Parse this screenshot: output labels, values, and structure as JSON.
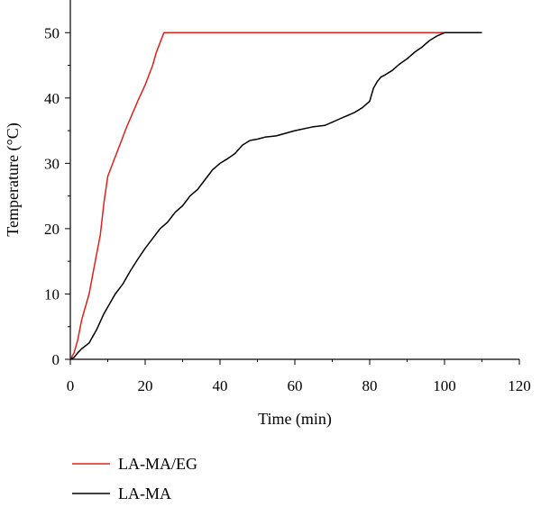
{
  "chart_data": {
    "type": "line",
    "xlabel": "Time (min)",
    "ylabel": "Temperature (°C)",
    "xlim": [
      0,
      120
    ],
    "ylim": [
      0,
      55
    ],
    "xticks": [
      0,
      20,
      40,
      60,
      80,
      100,
      120
    ],
    "yticks": [
      0,
      10,
      20,
      30,
      40,
      50
    ],
    "grid": false,
    "legend_placement": "bottom-left",
    "series": [
      {
        "name": "LA-MA/EG",
        "color": "#e0201b",
        "x": [
          0,
          1,
          2,
          3,
          5,
          7,
          8,
          9,
          10,
          12,
          15,
          18,
          20,
          22,
          23,
          24,
          25,
          50,
          100
        ],
        "y": [
          0,
          1,
          3,
          6,
          10,
          16,
          19,
          24,
          28,
          31,
          35.5,
          39.5,
          42,
          45,
          47,
          48.5,
          50,
          50,
          50
        ]
      },
      {
        "name": "LA-MA",
        "color": "#000000",
        "x": [
          0,
          1,
          2,
          3,
          5,
          7,
          9,
          10,
          12,
          14,
          16,
          18,
          20,
          22,
          24,
          26,
          28,
          30,
          32,
          34,
          36,
          38,
          40,
          42,
          44,
          46,
          48,
          50,
          52,
          55,
          60,
          65,
          68,
          70,
          72,
          74,
          76,
          78,
          80,
          81,
          82,
          83,
          84,
          86,
          88,
          90,
          92,
          94,
          96,
          98,
          100,
          110
        ],
        "y": [
          0,
          0.3,
          1,
          1.6,
          2.5,
          4.5,
          7,
          8,
          10,
          11.5,
          13.5,
          15.3,
          17,
          18.5,
          20,
          21,
          22.5,
          23.5,
          25,
          26,
          27.5,
          29,
          30,
          30.7,
          31.5,
          32.8,
          33.5,
          33.7,
          34,
          34.2,
          35,
          35.6,
          35.8,
          36.3,
          36.8,
          37.3,
          37.8,
          38.5,
          39.5,
          41.5,
          42.5,
          43.2,
          43.5,
          44.2,
          45.2,
          46,
          47,
          47.8,
          48.8,
          49.5,
          50,
          50
        ]
      }
    ]
  }
}
